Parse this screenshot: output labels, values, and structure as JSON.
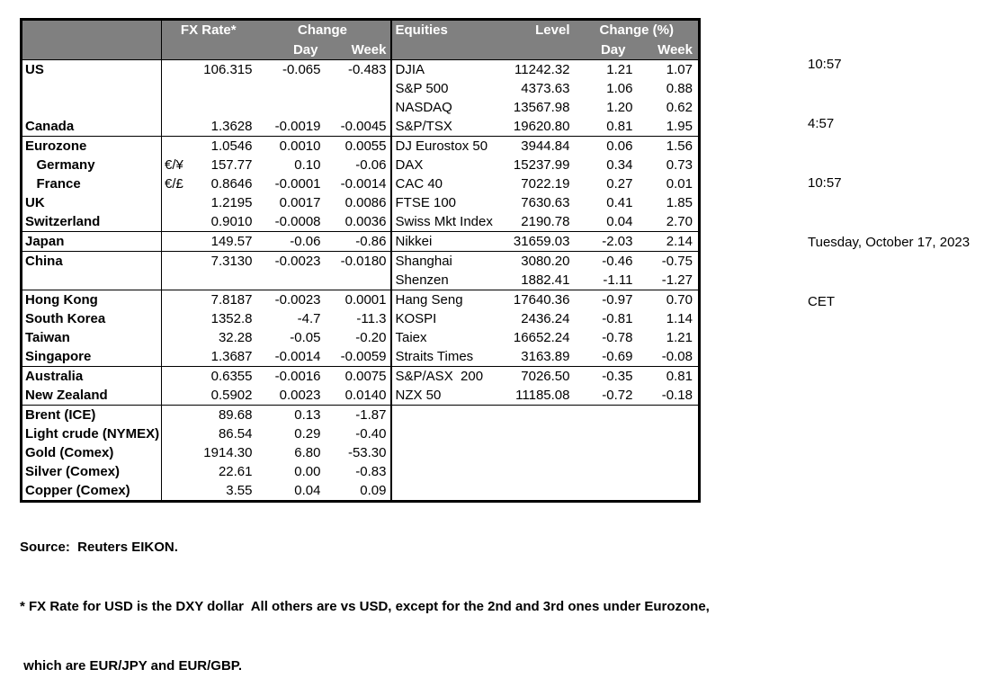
{
  "table": {
    "header": {
      "fx_rate": "FX Rate*",
      "change": "Change",
      "day": "Day",
      "week": "Week",
      "equities": "Equities",
      "level": "Level",
      "change_pct": "Change (%)"
    },
    "sections": [
      {
        "rows": [
          {
            "country": "US",
            "pair": "",
            "rate": "106.315",
            "day": "-0.065",
            "week": "-0.483",
            "eq": "DJIA",
            "level": "11242.32",
            "eday": "1.21",
            "eweek": "1.07"
          },
          {
            "country": "",
            "pair": "",
            "rate": "",
            "day": "",
            "week": "",
            "eq": "S&P 500",
            "level": "4373.63",
            "eday": "1.06",
            "eweek": "0.88"
          },
          {
            "country": "",
            "pair": "",
            "rate": "",
            "day": "",
            "week": "",
            "eq": "NASDAQ",
            "level": "13567.98",
            "eday": "1.20",
            "eweek": "0.62"
          },
          {
            "country": "Canada",
            "pair": "",
            "rate": "1.3628",
            "day": "-0.0019",
            "week": "-0.0045",
            "eq": "S&P/TSX",
            "level": "19620.80",
            "eday": "0.81",
            "eweek": "1.95"
          }
        ]
      },
      {
        "rows": [
          {
            "country": "Eurozone",
            "pair": "",
            "rate": "1.0546",
            "day": "0.0010",
            "week": "0.0055",
            "eq": "DJ Eurostox 50",
            "level": "3944.84",
            "eday": "0.06",
            "eweek": "1.56"
          },
          {
            "country": "   Germany",
            "pair": "€/¥",
            "rate": "157.77",
            "day": "0.10",
            "week": "-0.06",
            "eq": "DAX",
            "level": "15237.99",
            "eday": "0.34",
            "eweek": "0.73"
          },
          {
            "country": "   France",
            "pair": "€/£",
            "rate": "0.8646",
            "day": "-0.0001",
            "week": "-0.0014",
            "eq": "CAC 40",
            "level": "7022.19",
            "eday": "0.27",
            "eweek": "0.01"
          },
          {
            "country": "UK",
            "pair": "",
            "rate": "1.2195",
            "day": "0.0017",
            "week": "0.0086",
            "eq": "FTSE 100",
            "level": "7630.63",
            "eday": "0.41",
            "eweek": "1.85"
          },
          {
            "country": "Switzerland",
            "pair": "",
            "rate": "0.9010",
            "day": "-0.0008",
            "week": "0.0036",
            "eq": "Swiss Mkt Index",
            "level": "2190.78",
            "eday": "0.04",
            "eweek": "2.70"
          }
        ]
      },
      {
        "rows": [
          {
            "country": "Japan",
            "pair": "",
            "rate": "149.57",
            "day": "-0.06",
            "week": "-0.86",
            "eq": "Nikkei",
            "level": "31659.03",
            "eday": "-2.03",
            "eweek": "2.14"
          }
        ]
      },
      {
        "rows": [
          {
            "country": "China",
            "pair": "",
            "rate": "7.3130",
            "day": "-0.0023",
            "week": "-0.0180",
            "eq": "Shanghai",
            "level": "3080.20",
            "eday": "-0.46",
            "eweek": "-0.75"
          },
          {
            "country": "",
            "pair": "",
            "rate": "",
            "day": "",
            "week": "",
            "eq": "Shenzen",
            "level": "1882.41",
            "eday": "-1.11",
            "eweek": "-1.27"
          }
        ]
      },
      {
        "rows": [
          {
            "country": "Hong Kong",
            "pair": "",
            "rate": "7.8187",
            "day": "-0.0023",
            "week": "0.0001",
            "eq": "Hang Seng",
            "level": "17640.36",
            "eday": "-0.97",
            "eweek": "0.70"
          },
          {
            "country": "South Korea",
            "pair": "",
            "rate": "1352.8",
            "day": "-4.7",
            "week": "-11.3",
            "eq": "KOSPI",
            "level": "2436.24",
            "eday": "-0.81",
            "eweek": "1.14"
          },
          {
            "country": "Taiwan",
            "pair": "",
            "rate": "32.28",
            "day": "-0.05",
            "week": "-0.20",
            "eq": "Taiex",
            "level": "16652.24",
            "eday": "-0.78",
            "eweek": "1.21"
          },
          {
            "country": "Singapore",
            "pair": "",
            "rate": "1.3687",
            "day": "-0.0014",
            "week": "-0.0059",
            "eq": "Straits Times",
            "level": "3163.89",
            "eday": "-0.69",
            "eweek": "-0.08"
          }
        ]
      },
      {
        "rows": [
          {
            "country": "Australia",
            "pair": "",
            "rate": "0.6355",
            "day": "-0.0016",
            "week": "0.0075",
            "eq": "S&P/ASX  200",
            "level": "7026.50",
            "eday": "-0.35",
            "eweek": "0.81"
          },
          {
            "country": "New Zealand",
            "pair": "",
            "rate": "0.5902",
            "day": "0.0023",
            "week": "0.0140",
            "eq": "NZX 50",
            "level": "11185.08",
            "eday": "-0.72",
            "eweek": "-0.18"
          }
        ]
      },
      {
        "right_empty": true,
        "rows": [
          {
            "country": "Brent (ICE)",
            "pair": "",
            "rate": "89.68",
            "day": "0.13",
            "week": "-1.87"
          },
          {
            "country": "Light crude (NYMEX)",
            "pair": "",
            "rate": "86.54",
            "day": "0.29",
            "week": "-0.40"
          },
          {
            "country": "Gold (Comex)",
            "pair": "",
            "rate": "1914.30",
            "day": "6.80",
            "week": "-53.30"
          },
          {
            "country": "Silver (Comex)",
            "pair": "",
            "rate": "22.61",
            "day": "0.00",
            "week": "-0.83"
          },
          {
            "country": "Copper (Comex)",
            "pair": "",
            "rate": "3.55",
            "day": "0.04",
            "week": "0.09"
          }
        ]
      }
    ]
  },
  "timestamps": [
    "10:57",
    "4:57",
    "10:57",
    "Tuesday, October 17, 2023",
    "CET"
  ],
  "footnotes": {
    "source": "Source:  Reuters EIKON.",
    "line1": "* FX Rate for USD is the DXY dollar  All others are vs USD, except for the 2nd and 3rd ones under Eurozone,",
    "line2": " which are EUR/JPY and EUR/GBP."
  },
  "colors": {
    "header_bg": "#808080",
    "header_text": "#ffffff",
    "border": "#000000",
    "text": "#000000"
  }
}
